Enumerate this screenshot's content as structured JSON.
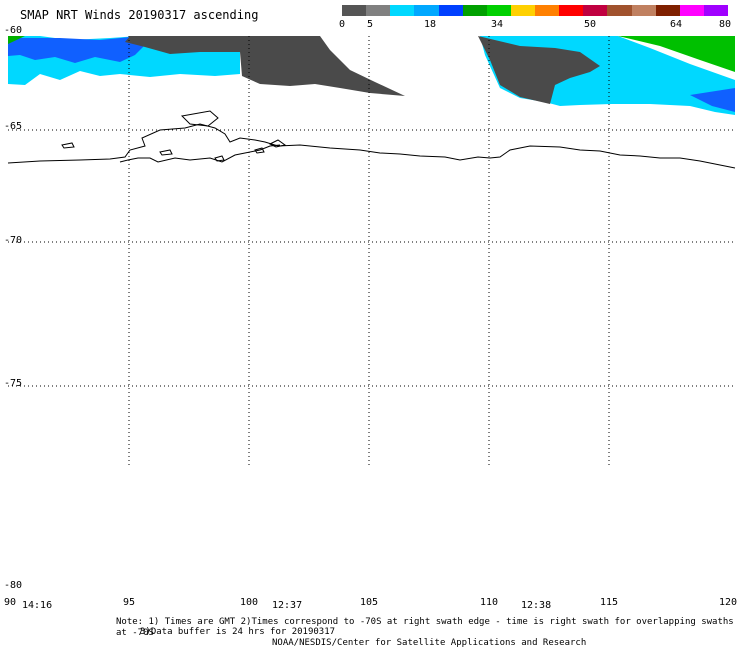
{
  "title": "SMAP NRT Winds 20190317 ascending",
  "colorbar": {
    "ticks": [
      "0",
      "5",
      "18",
      "34",
      "50",
      "64",
      "80"
    ],
    "segments": [
      {
        "color": "#555555"
      },
      {
        "color": "#808080"
      },
      {
        "color": "#00d8ff"
      },
      {
        "color": "#00a8ff"
      },
      {
        "color": "#0040ff"
      },
      {
        "color": "#00a000"
      },
      {
        "color": "#00d000"
      },
      {
        "color": "#ffd000"
      },
      {
        "color": "#ff8000"
      },
      {
        "color": "#ff0000"
      },
      {
        "color": "#c00040"
      },
      {
        "color": "#a0522d"
      },
      {
        "color": "#c08060"
      },
      {
        "color": "#7f2000"
      },
      {
        "color": "#ff00ff"
      },
      {
        "color": "#a000ff"
      }
    ]
  },
  "axes": {
    "y_labels": [
      "-60",
      "-65",
      "-70",
      "-75",
      "-80"
    ],
    "x_labels": [
      "90",
      "95",
      "100",
      "105",
      "110",
      "115",
      "120"
    ]
  },
  "times": [
    "14:16",
    "12:37",
    "12:38"
  ],
  "notes": {
    "line1": "Note: 1) Times are GMT 2)Times correspond to -70S at right swath edge - time is right swath for overlapping swaths at -70S",
    "line2": "3)Data buffer is 24 hrs for 20190317",
    "line3": "NOAA/NESDIS/Center for Satellite Applications and Research"
  },
  "colors": {
    "calm": "#4a4a4a",
    "light": "#00e0ff",
    "moderate": "#0055ff",
    "strong": "#00c000",
    "coast": "#000000",
    "grid": "#000000"
  }
}
